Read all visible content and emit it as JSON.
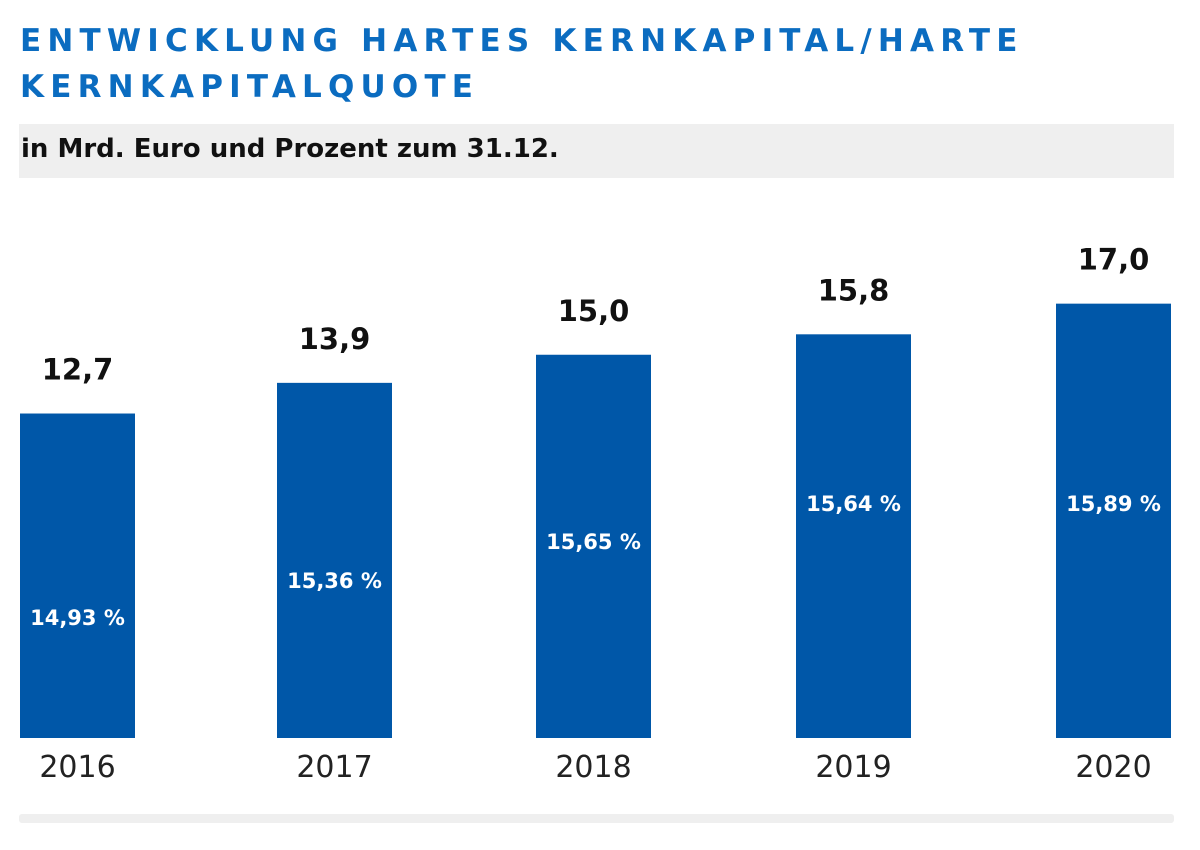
{
  "title": "ENTWICKLUNG HARTES KERNKAPITAL/HARTE KERNKAPITALQUOTE",
  "subtitle": "in Mrd. Euro und Prozent zum 31.12.",
  "colors": {
    "bar": "#0057a8",
    "title": "#0b6cc0",
    "band": "#efefef"
  },
  "chart_data": {
    "type": "bar",
    "categories": [
      "2016",
      "2017",
      "2018",
      "2019",
      "2020"
    ],
    "series": [
      {
        "values": [
          12.7,
          13.9,
          15.0,
          15.8,
          17.0
        ],
        "labels": [
          "12,7",
          "13,9",
          "15,0",
          "15,8",
          "17,0"
        ]
      }
    ],
    "ratios": [
      14.93,
      15.36,
      15.65,
      15.64,
      15.89
    ],
    "ratio_labels": [
      "14,93 %",
      "15,36 %",
      "15,65 %",
      "15,64 %",
      "15,89 %"
    ],
    "ylim": [
      0,
      17.0
    ],
    "grid": false,
    "axis_visible": false
  }
}
